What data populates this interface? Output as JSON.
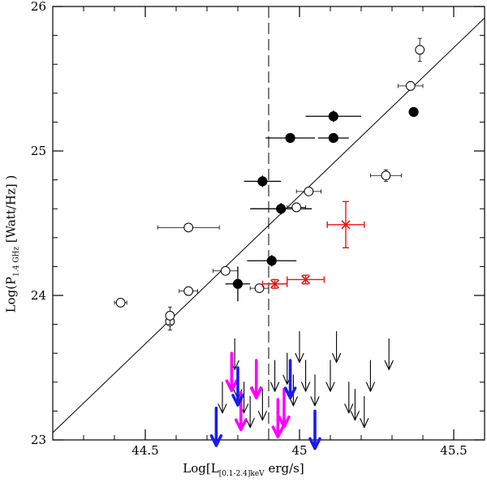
{
  "chart_data": {
    "type": "scatter",
    "xlabel": {
      "prefix": "Log[L",
      "sub": "[0.1-2.4]keV",
      "suffix": " erg/s]"
    },
    "ylabel": {
      "prefix": "Log(P",
      "sub": "1.4 GHz",
      "suffix": " [Watt/Hz] )"
    },
    "xlim": [
      44.2,
      45.6
    ],
    "ylim": [
      23.0,
      26.0
    ],
    "x_ticks": [
      {
        "value": 44.5,
        "label": "44.5"
      },
      {
        "value": 45.0,
        "label": "45"
      },
      {
        "value": 45.5,
        "label": "45.5"
      }
    ],
    "y_ticks": [
      {
        "value": 23,
        "label": "23"
      },
      {
        "value": 24,
        "label": "24"
      },
      {
        "value": 25,
        "label": "25"
      },
      {
        "value": 26,
        "label": "26"
      }
    ],
    "x_minor_step": 0.1,
    "y_minor_step": 0.2,
    "vline": {
      "x": 44.9,
      "style": "dashed"
    },
    "fit_line": {
      "x": [
        44.2,
        45.6
      ],
      "y": [
        23.05,
        25.92
      ]
    },
    "series": [
      {
        "name": "filled circles",
        "marker": "filled-circle",
        "color": "#000000",
        "points": [
          {
            "x": 44.8,
            "y": 24.08,
            "xerr": 0.04,
            "yerr": 0.12
          },
          {
            "x": 44.88,
            "y": 24.79,
            "xerr": 0.06,
            "yerr": 0.04
          },
          {
            "x": 44.91,
            "y": 24.24,
            "xerr": 0.08,
            "yerr": 0.04
          },
          {
            "x": 44.94,
            "y": 24.6,
            "xerr": 0.1,
            "yerr": 0.04
          },
          {
            "x": 44.97,
            "y": 25.09,
            "xerr": 0.08,
            "yerr": 0.02
          },
          {
            "x": 45.11,
            "y": 25.09,
            "xerr": 0.05,
            "yerr": 0.02
          },
          {
            "x": 45.11,
            "y": 25.24,
            "xerr": 0.09,
            "yerr": 0.04
          },
          {
            "x": 45.37,
            "y": 25.27,
            "xerr": 0.01,
            "yerr": 0.03
          }
        ]
      },
      {
        "name": "open circles",
        "marker": "open-circle",
        "color": "#000000",
        "points": [
          {
            "x": 44.42,
            "y": 23.95,
            "xerr": 0.02,
            "yerr": 0.02
          },
          {
            "x": 44.58,
            "y": 23.82,
            "xerr": 0.01,
            "yerr": 0.06
          },
          {
            "x": 44.58,
            "y": 23.86,
            "xerr": 0.01,
            "yerr": 0.06
          },
          {
            "x": 44.64,
            "y": 24.03,
            "xerr": 0.03,
            "yerr": 0.02
          },
          {
            "x": 44.64,
            "y": 24.47,
            "xerr": 0.1,
            "yerr": 0.02
          },
          {
            "x": 44.76,
            "y": 24.17,
            "xerr": 0.04,
            "yerr": 0.02
          },
          {
            "x": 44.87,
            "y": 24.05,
            "xerr": 0.03,
            "yerr": 0.02
          },
          {
            "x": 44.99,
            "y": 24.61,
            "xerr": 0.03,
            "yerr": 0.03
          },
          {
            "x": 45.03,
            "y": 24.72,
            "xerr": 0.04,
            "yerr": 0.02
          },
          {
            "x": 45.28,
            "y": 24.83,
            "xerr": 0.05,
            "yerr": 0.04
          },
          {
            "x": 45.36,
            "y": 25.45,
            "xerr": 0.04,
            "yerr": 0.03
          },
          {
            "x": 45.39,
            "y": 25.7,
            "xerr": 0.01,
            "yerr": 0.08
          }
        ]
      },
      {
        "name": "red crosses",
        "marker": "x-cross",
        "color": "#ee1111",
        "points": [
          {
            "x": 44.92,
            "y": 24.08,
            "xerr": 0.04,
            "yerr": 0.03
          },
          {
            "x": 45.02,
            "y": 24.11,
            "xerr": 0.06,
            "yerr": 0.03
          },
          {
            "x": 45.15,
            "y": 24.49,
            "xerr": 0.06,
            "yerr": 0.16
          }
        ]
      },
      {
        "name": "upper limits (black)",
        "marker": "down-arrow",
        "color": "#000000",
        "points": [
          {
            "x": 44.79,
            "y": 23.7
          },
          {
            "x": 44.8,
            "y": 23.5
          },
          {
            "x": 44.82,
            "y": 23.4
          },
          {
            "x": 44.84,
            "y": 23.3
          },
          {
            "x": 44.86,
            "y": 23.52
          },
          {
            "x": 44.88,
            "y": 23.35
          },
          {
            "x": 44.92,
            "y": 23.55
          },
          {
            "x": 44.96,
            "y": 23.6
          },
          {
            "x": 44.98,
            "y": 23.45
          },
          {
            "x": 45.0,
            "y": 23.75
          },
          {
            "x": 45.02,
            "y": 23.55
          },
          {
            "x": 45.05,
            "y": 23.45
          },
          {
            "x": 45.1,
            "y": 23.55
          },
          {
            "x": 45.12,
            "y": 23.75
          },
          {
            "x": 45.16,
            "y": 23.4
          },
          {
            "x": 45.18,
            "y": 23.35
          },
          {
            "x": 45.21,
            "y": 23.3
          },
          {
            "x": 45.23,
            "y": 23.55
          },
          {
            "x": 45.29,
            "y": 23.7
          },
          {
            "x": 44.75,
            "y": 23.4
          }
        ]
      },
      {
        "name": "upper limits (magenta)",
        "marker": "down-arrow-thick",
        "color": "#ff00ff",
        "points": [
          {
            "x": 44.78,
            "y": 23.6
          },
          {
            "x": 44.81,
            "y": 23.33
          },
          {
            "x": 44.86,
            "y": 23.55
          },
          {
            "x": 44.93,
            "y": 23.28
          },
          {
            "x": 44.95,
            "y": 23.35
          }
        ]
      },
      {
        "name": "upper limits (blue)",
        "marker": "down-arrow-thick",
        "color": "#1a1aee",
        "points": [
          {
            "x": 44.73,
            "y": 23.22
          },
          {
            "x": 44.8,
            "y": 23.5
          },
          {
            "x": 44.97,
            "y": 23.55
          },
          {
            "x": 45.05,
            "y": 23.2
          }
        ]
      }
    ]
  }
}
